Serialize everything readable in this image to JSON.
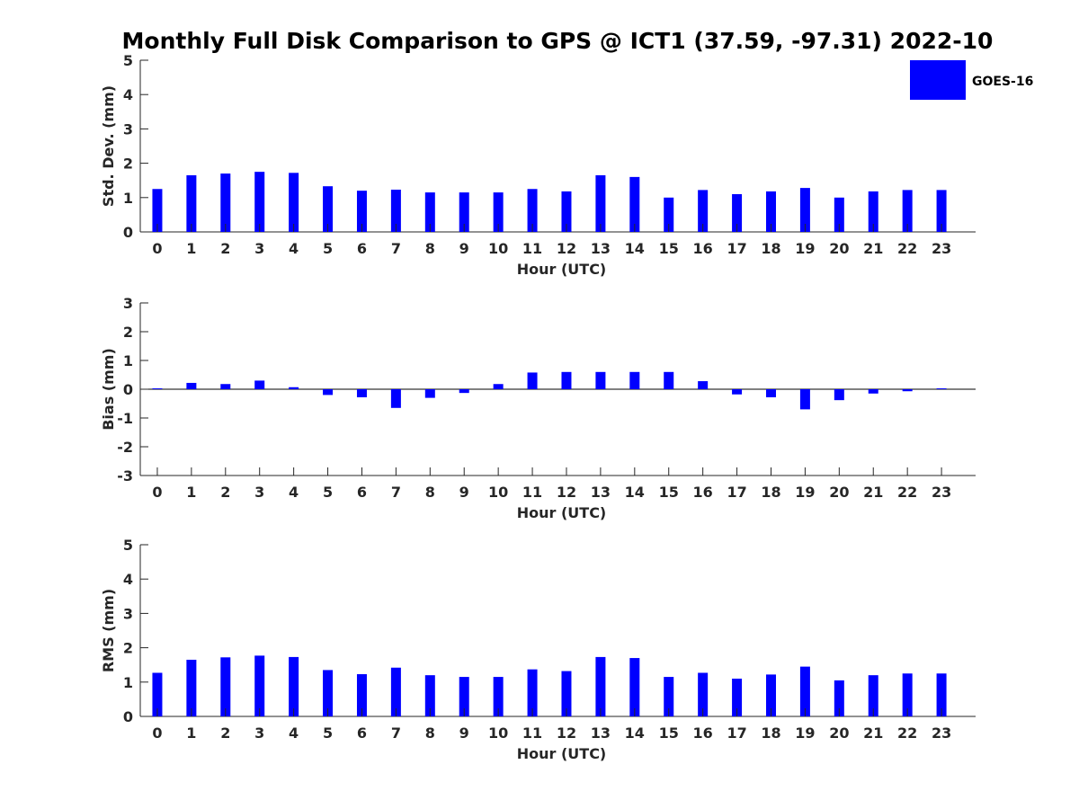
{
  "figure": {
    "title": "Monthly Full Disk Comparison to GPS @ ICT1 (37.59, -97.31) 2022-10"
  },
  "colors": {
    "bar": "#0000ff",
    "axis": "#262626"
  },
  "legend": {
    "label": "GOES-16",
    "placement": "top-right"
  },
  "chart_data": [
    {
      "type": "bar",
      "xlabel": "Hour (UTC)",
      "ylabel": "Std. Dev. (mm)",
      "ylim": [
        0,
        5
      ],
      "yticks": [
        0,
        1,
        2,
        3,
        4,
        5
      ],
      "categories": [
        "0",
        "1",
        "2",
        "3",
        "4",
        "5",
        "6",
        "7",
        "8",
        "9",
        "10",
        "11",
        "12",
        "13",
        "14",
        "15",
        "16",
        "17",
        "18",
        "19",
        "20",
        "21",
        "22",
        "23"
      ],
      "series": [
        {
          "name": "GOES-16",
          "values": [
            1.25,
            1.65,
            1.7,
            1.75,
            1.72,
            1.33,
            1.2,
            1.23,
            1.15,
            1.15,
            1.15,
            1.25,
            1.18,
            1.65,
            1.6,
            1.0,
            1.22,
            1.1,
            1.18,
            1.28,
            1.0,
            1.18,
            1.22,
            1.22
          ]
        }
      ]
    },
    {
      "type": "bar",
      "xlabel": "Hour (UTC)",
      "ylabel": "Bias (mm)",
      "ylim": [
        -3,
        3
      ],
      "yticks": [
        -3,
        -2,
        -1,
        0,
        1,
        2,
        3
      ],
      "categories": [
        "0",
        "1",
        "2",
        "3",
        "4",
        "5",
        "6",
        "7",
        "8",
        "9",
        "10",
        "11",
        "12",
        "13",
        "14",
        "15",
        "16",
        "17",
        "18",
        "19",
        "20",
        "21",
        "22",
        "23"
      ],
      "series": [
        {
          "name": "GOES-16",
          "values": [
            0.03,
            0.22,
            0.18,
            0.3,
            0.07,
            -0.2,
            -0.28,
            -0.65,
            -0.3,
            -0.13,
            0.18,
            0.58,
            0.6,
            0.6,
            0.6,
            0.6,
            0.28,
            -0.18,
            -0.28,
            -0.7,
            -0.38,
            -0.15,
            -0.07,
            0.03
          ]
        }
      ]
    },
    {
      "type": "bar",
      "xlabel": "Hour (UTC)",
      "ylabel": "RMS (mm)",
      "ylim": [
        0,
        5
      ],
      "yticks": [
        0,
        1,
        2,
        3,
        4,
        5
      ],
      "categories": [
        "0",
        "1",
        "2",
        "3",
        "4",
        "5",
        "6",
        "7",
        "8",
        "9",
        "10",
        "11",
        "12",
        "13",
        "14",
        "15",
        "16",
        "17",
        "18",
        "19",
        "20",
        "21",
        "22",
        "23"
      ],
      "series": [
        {
          "name": "GOES-16",
          "values": [
            1.27,
            1.65,
            1.72,
            1.77,
            1.73,
            1.35,
            1.23,
            1.42,
            1.2,
            1.15,
            1.15,
            1.37,
            1.32,
            1.73,
            1.7,
            1.15,
            1.27,
            1.1,
            1.22,
            1.45,
            1.05,
            1.2,
            1.25,
            1.25
          ]
        }
      ]
    }
  ]
}
